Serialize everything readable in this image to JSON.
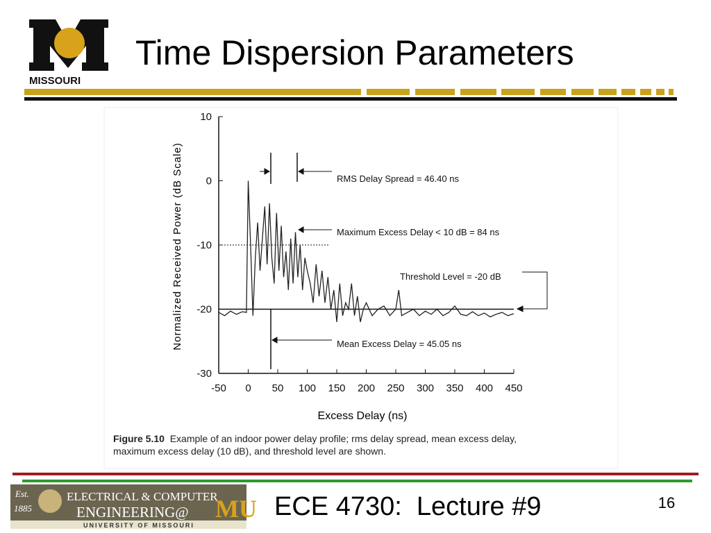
{
  "header": {
    "title": "Time Dispersion Parameters",
    "logo_text": "MISSOURI"
  },
  "chart_data": {
    "type": "line",
    "x": [
      -50,
      -40,
      -30,
      -20,
      -10,
      -3,
      0,
      4,
      8,
      12,
      16,
      20,
      24,
      28,
      32,
      36,
      40,
      44,
      48,
      52,
      56,
      60,
      64,
      68,
      72,
      76,
      80,
      84,
      88,
      92,
      96,
      100,
      105,
      110,
      115,
      120,
      125,
      130,
      135,
      140,
      145,
      150,
      155,
      160,
      165,
      170,
      175,
      180,
      185,
      190,
      195,
      200,
      210,
      220,
      230,
      240,
      250,
      255,
      260,
      270,
      280,
      290,
      300,
      310,
      320,
      330,
      340,
      350,
      360,
      370,
      380,
      390,
      400,
      410,
      420,
      430,
      440,
      450
    ],
    "values": [
      -20.5,
      -21,
      -20.3,
      -20.8,
      -20.4,
      -20.5,
      0,
      -10,
      -21,
      -12,
      -6.5,
      -14,
      -9,
      -4,
      -13,
      -3.5,
      -12,
      -16,
      -5,
      -14,
      -7,
      -15,
      -11,
      -17,
      -9,
      -16,
      -8,
      -15,
      -10,
      -17,
      -12,
      -14,
      -16,
      -19,
      -13,
      -18,
      -14,
      -19,
      -15,
      -20,
      -17,
      -22,
      -16,
      -21,
      -19,
      -20,
      -16,
      -21,
      -18,
      -22,
      -20,
      -19,
      -21,
      -20,
      -19.5,
      -21,
      -20,
      -17,
      -21,
      -20.5,
      -20,
      -21,
      -20.3,
      -20.8,
      -20,
      -21,
      -20.5,
      -19.5,
      -20.8,
      -21,
      -20.4,
      -21,
      -20.6,
      -21.2,
      -20.8,
      -20.5,
      -21,
      -20.7
    ],
    "color": "#222222",
    "xlim": [
      -50,
      450
    ],
    "xticks": [
      -50,
      0,
      50,
      100,
      150,
      200,
      250,
      300,
      350,
      400,
      450
    ],
    "ylim": [
      -30,
      10
    ],
    "yticks": [
      10,
      0,
      -10,
      -20,
      -30
    ],
    "x_label": "Excess Delay (ns)",
    "y_label": "Normalized Received Power (dB Scale)",
    "annotations": [
      "RMS Delay Spread = 46.40 ns",
      "Maximum Excess Delay < 10 dB = 84 ns",
      "Threshold Level = -20 dB",
      "Mean Excess Delay = 45.05 ns"
    ]
  },
  "caption": {
    "label": "Figure 5.10",
    "lines": [
      "  Example of an indoor power delay profile; rms delay spread, mean excess delay,",
      "maximum excess delay (10 dB), and threshold level are shown."
    ]
  },
  "footer": {
    "course": "ECE 4730:  Lecture #9",
    "page": "16",
    "logo": {
      "est": "Est.",
      "year": "1885",
      "line1": "ELECTRICAL & COMPUTER",
      "line2": "ENGINEERING@",
      "mu": "MU",
      "university": "UNIVERSITY OF MISSOURI"
    }
  }
}
